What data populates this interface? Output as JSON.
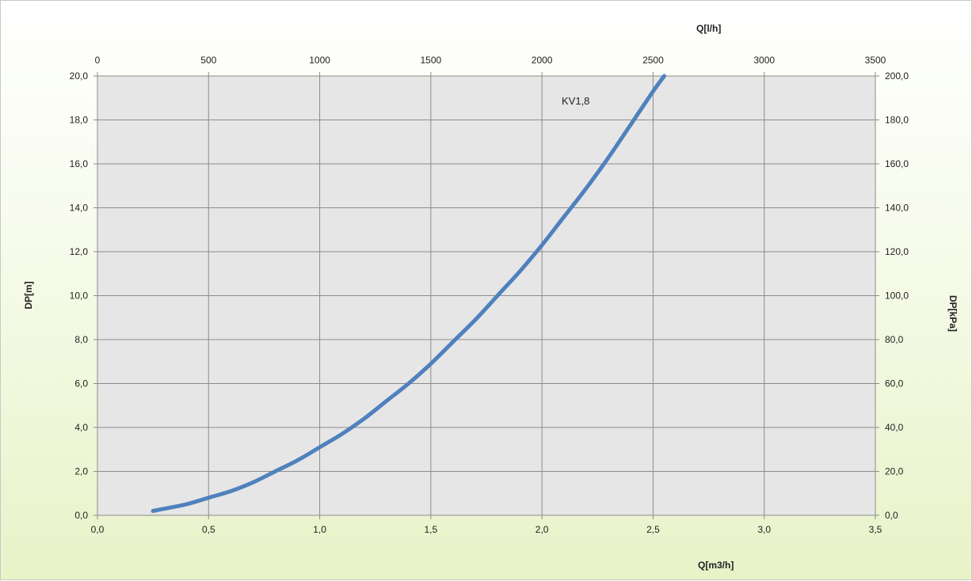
{
  "chart_data": {
    "type": "line",
    "title": "",
    "grid": true,
    "legend": "none",
    "x_bottom": {
      "label": "Q[m3/h]",
      "range": [
        0,
        3.5
      ],
      "ticks": [
        "0,0",
        "0,5",
        "1,0",
        "1,5",
        "2,0",
        "2,5",
        "3,0",
        "3,5"
      ]
    },
    "x_top": {
      "label": "Q[l/h]",
      "range": [
        0,
        3500
      ],
      "ticks": [
        "0",
        "500",
        "1000",
        "1500",
        "2000",
        "2500",
        "3000",
        "3500"
      ]
    },
    "y_left": {
      "label": "DP[m]",
      "range": [
        0,
        20
      ],
      "ticks": [
        "0,0",
        "2,0",
        "4,0",
        "6,0",
        "8,0",
        "10,0",
        "12,0",
        "14,0",
        "16,0",
        "18,0",
        "20,0"
      ]
    },
    "y_right": {
      "label": "DP[kPa]",
      "range": [
        0,
        200
      ],
      "ticks": [
        "0,0",
        "20,0",
        "40,0",
        "60,0",
        "80,0",
        "100,0",
        "120,0",
        "140,0",
        "160,0",
        "180,0",
        "200,0"
      ]
    },
    "series": [
      {
        "name": "KV1,8",
        "color": "#4f81bd",
        "x": [
          0.25,
          0.3,
          0.4,
          0.5,
          0.6,
          0.7,
          0.8,
          0.9,
          1.0,
          1.1,
          1.2,
          1.3,
          1.4,
          1.5,
          1.6,
          1.7,
          1.8,
          1.9,
          2.0,
          2.1,
          2.2,
          2.3,
          2.4,
          2.5,
          2.55
        ],
        "y": [
          0.2,
          0.3,
          0.5,
          0.8,
          1.1,
          1.5,
          2.0,
          2.5,
          3.1,
          3.7,
          4.4,
          5.2,
          6.0,
          6.9,
          7.9,
          8.9,
          10.0,
          11.1,
          12.3,
          13.6,
          14.9,
          16.3,
          17.8,
          19.3,
          20.0
        ]
      }
    ]
  }
}
